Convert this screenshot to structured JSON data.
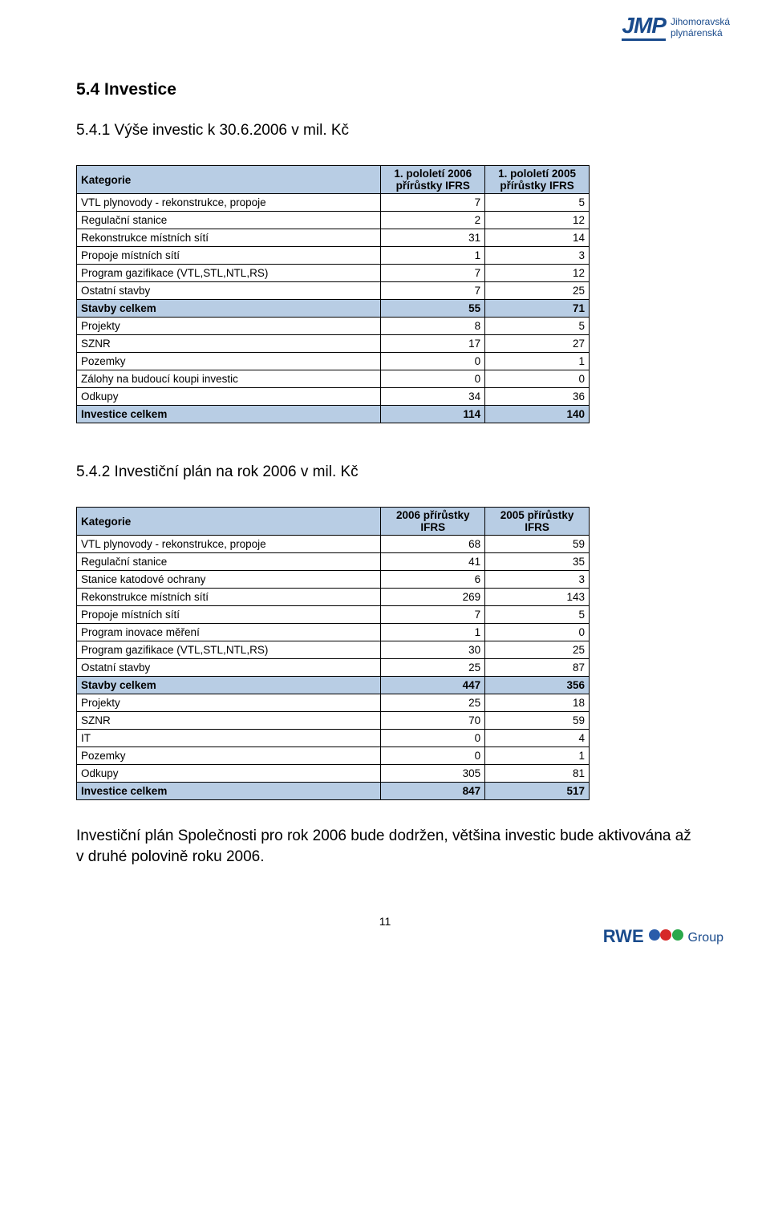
{
  "logoTop": {
    "brand": "JMP",
    "line1": "Jihomoravská",
    "line2": "plynárenská"
  },
  "sectionHeading": "5.4  Investice",
  "sub1": {
    "heading": "5.4.1  Výše investic k 30.6.2006 v mil. Kč"
  },
  "sub2": {
    "heading": "5.4.2  Investiční plán na rok 2006  v mil. Kč"
  },
  "table1": {
    "colors": {
      "headerBg": "#b8cde4",
      "border": "#000000",
      "text": "#000000"
    },
    "header": {
      "c0": "Kategorie",
      "c1": "1. pololetí 2006 přírůstky IFRS",
      "c2": "1. pololetí 2005 přírůstky IFRS"
    },
    "rows": [
      {
        "label": "VTL plynovody - rekonstrukce, propoje",
        "v1": "7",
        "v2": "5",
        "summary": false
      },
      {
        "label": "Regulační stanice",
        "v1": "2",
        "v2": "12",
        "summary": false
      },
      {
        "label": "Rekonstrukce místních sítí",
        "v1": "31",
        "v2": "14",
        "summary": false
      },
      {
        "label": "Propoje místních sítí",
        "v1": "1",
        "v2": "3",
        "summary": false
      },
      {
        "label": "Program gazifikace (VTL,STL,NTL,RS)",
        "v1": "7",
        "v2": "12",
        "summary": false
      },
      {
        "label": "Ostatní stavby",
        "v1": "7",
        "v2": "25",
        "summary": false
      },
      {
        "label": "Stavby celkem",
        "v1": "55",
        "v2": "71",
        "summary": true
      },
      {
        "label": "Projekty",
        "v1": "8",
        "v2": "5",
        "summary": false
      },
      {
        "label": "SZNR",
        "v1": "17",
        "v2": "27",
        "summary": false
      },
      {
        "label": "Pozemky",
        "v1": "0",
        "v2": "1",
        "summary": false
      },
      {
        "label": "Zálohy na budoucí koupi investic",
        "v1": "0",
        "v2": "0",
        "summary": false
      },
      {
        "label": "Odkupy",
        "v1": "34",
        "v2": "36",
        "summary": false
      },
      {
        "label": "Investice celkem",
        "v1": "114",
        "v2": "140",
        "summary": true
      }
    ]
  },
  "table2": {
    "colors": {
      "headerBg": "#b8cde4",
      "border": "#000000",
      "text": "#000000"
    },
    "header": {
      "c0": "Kategorie",
      "c1": "2006 přírůstky IFRS",
      "c2": "2005 přírůstky IFRS"
    },
    "rows": [
      {
        "label": "VTL plynovody - rekonstrukce, propoje",
        "v1": "68",
        "v2": "59",
        "summary": false
      },
      {
        "label": "Regulační stanice",
        "v1": "41",
        "v2": "35",
        "summary": false
      },
      {
        "label": "Stanice katodové ochrany",
        "v1": "6",
        "v2": "3",
        "summary": false
      },
      {
        "label": "Rekonstrukce místních sítí",
        "v1": "269",
        "v2": "143",
        "summary": false
      },
      {
        "label": "Propoje místních sítí",
        "v1": "7",
        "v2": "5",
        "summary": false
      },
      {
        "label": "Program inovace měření",
        "v1": "1",
        "v2": "0",
        "summary": false
      },
      {
        "label": "Program gazifikace (VTL,STL,NTL,RS)",
        "v1": "30",
        "v2": "25",
        "summary": false
      },
      {
        "label": "Ostatní stavby",
        "v1": "25",
        "v2": "87",
        "summary": false
      },
      {
        "label": "Stavby celkem",
        "v1": "447",
        "v2": "356",
        "summary": true
      },
      {
        "label": "Projekty",
        "v1": "25",
        "v2": "18",
        "summary": false
      },
      {
        "label": "SZNR",
        "v1": "70",
        "v2": "59",
        "summary": false
      },
      {
        "label": "IT",
        "v1": "0",
        "v2": "4",
        "summary": false
      },
      {
        "label": "Pozemky",
        "v1": "0",
        "v2": "1",
        "summary": false
      },
      {
        "label": "Odkupy",
        "v1": "305",
        "v2": "81",
        "summary": false
      },
      {
        "label": "Investice celkem",
        "v1": "847",
        "v2": "517",
        "summary": true
      }
    ]
  },
  "bodyText": "Investiční plán Společnosti pro rok 2006 bude dodržen, většina investic bude aktivována až v druhé polovině roku 2006.",
  "pageNumber": "11",
  "logoBottom": {
    "text": "RWE",
    "groupText": "Group",
    "dotColors": [
      "#2a5caa",
      "#d62828",
      "#2aa84a"
    ]
  }
}
